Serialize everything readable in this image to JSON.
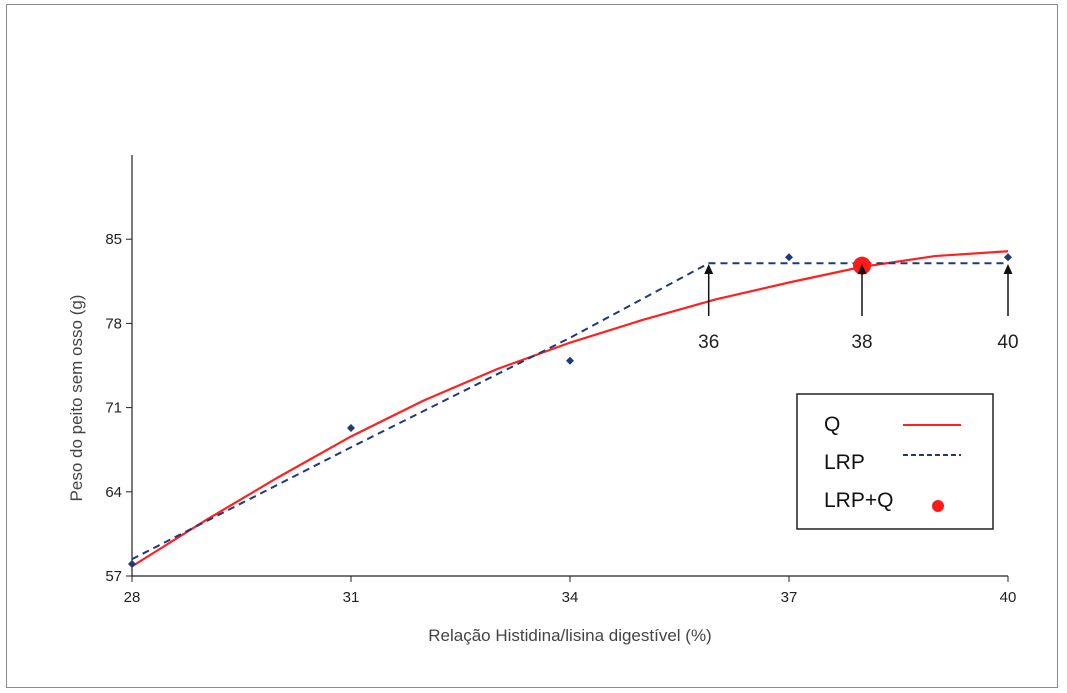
{
  "chart_data": {
    "type": "line",
    "xlabel": "Relação Histidina/lisina digestível (%)",
    "ylabel": "Peso do peito sem osso (g)",
    "xlim": [
      28,
      40
    ],
    "ylim": [
      57,
      92
    ],
    "x_ticks": [
      "28",
      "31",
      "34",
      "37",
      "40"
    ],
    "y_ticks": [
      "57",
      "64",
      "71",
      "78",
      "85"
    ],
    "grid": false,
    "legend_position": "bottom-right",
    "colors": {
      "Q": "#ff2020",
      "LRP": "#1f3a7a",
      "points": "#1f3a7a",
      "optimum": "#ff1a1a"
    },
    "observed": {
      "x": [
        28,
        31,
        34,
        37,
        40
      ],
      "y": [
        58.0,
        69.3,
        74.9,
        83.5,
        83.5
      ]
    },
    "series": [
      {
        "name": "Q",
        "style": "solid",
        "x": [
          28,
          29,
          30,
          31,
          32,
          33,
          34,
          35,
          36,
          37,
          38,
          39,
          40
        ],
        "y": [
          57.8,
          61.6,
          65.2,
          68.6,
          71.6,
          74.2,
          76.4,
          78.3,
          80.0,
          81.4,
          82.7,
          83.6,
          84.0
        ]
      },
      {
        "name": "LRP",
        "style": "dashed",
        "x": [
          28,
          31,
          34,
          35.9,
          40
        ],
        "y": [
          58.4,
          67.7,
          76.8,
          83.0,
          83.0
        ]
      },
      {
        "name": "LRP+Q",
        "style": "marker",
        "x": [
          38
        ],
        "y": [
          82.8
        ]
      }
    ],
    "annotations": [
      {
        "label": "36",
        "x": 35.9
      },
      {
        "label": "38",
        "x": 38
      },
      {
        "label": "40",
        "x": 40
      }
    ]
  },
  "legend": [
    {
      "label": "Q",
      "style": "solid"
    },
    {
      "label": "LRP",
      "style": "dashed"
    },
    {
      "label": "LRP+Q",
      "style": "marker"
    }
  ]
}
